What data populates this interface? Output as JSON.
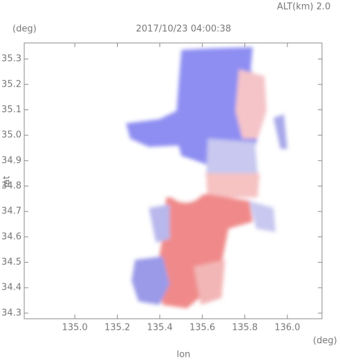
{
  "chart_data": {
    "type": "image",
    "title": "2017/10/23 04:00:38",
    "annotation": "ALT(km) 2.0",
    "xlabel": "lon",
    "ylabel": "lat",
    "xunit": "(deg)",
    "yunit": "(deg)",
    "xlim": [
      134.762,
      136.163
    ],
    "ylim": [
      34.278,
      35.363
    ],
    "xticks": [
      {
        "value": 135,
        "label": "135.0"
      },
      135.2,
      135.4,
      135.6,
      135.8,
      {
        "value": 136,
        "label": "136.0"
      }
    ],
    "yticks": [
      34.3,
      34.4,
      34.5,
      34.6,
      34.7,
      34.8,
      34.9,
      {
        "value": 35,
        "label": "35.0"
      },
      35.1,
      35.2,
      35.3
    ]
  }
}
